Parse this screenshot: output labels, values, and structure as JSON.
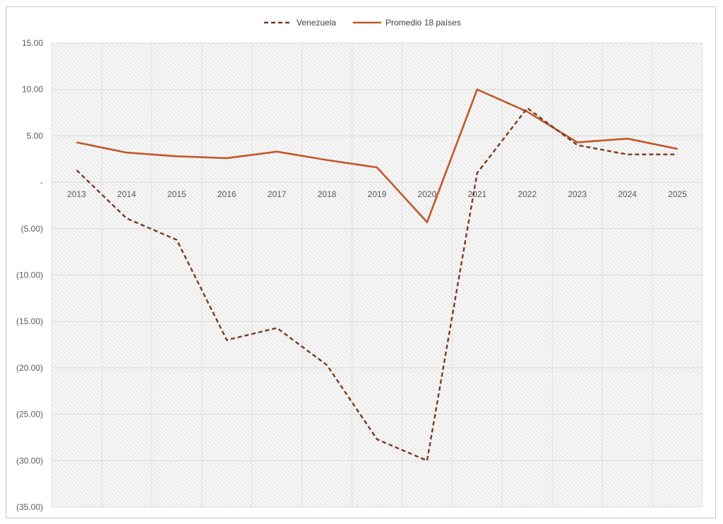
{
  "chart_data": {
    "type": "line",
    "title": "",
    "xlabel": "",
    "ylabel": "",
    "x": [
      "2013",
      "2014",
      "2015",
      "2016",
      "2017",
      "2018",
      "2019",
      "2020",
      "2021",
      "2022",
      "2023",
      "2024",
      "2025"
    ],
    "ylim": [
      -35,
      15
    ],
    "yticks": [
      15,
      10,
      5,
      0,
      -5,
      -10,
      -15,
      -20,
      -25,
      -30,
      -35
    ],
    "ytick_labels": [
      "15.00",
      "10.00",
      "5.00",
      "-",
      "(5.00)",
      "(10.00)",
      "(15.00)",
      "(20.00)",
      "(25.00)",
      "(30.00)",
      "(35.00)"
    ],
    "grid": true,
    "legend": "top-center",
    "series": [
      {
        "name": "Venezuela",
        "style": "dashed",
        "color": "#7a3a1e",
        "values": [
          1.3,
          -3.9,
          -6.2,
          -17.0,
          -15.7,
          -19.7,
          -27.7,
          -30.0,
          1.0,
          8.0,
          4.0,
          3.0,
          3.0
        ]
      },
      {
        "name": "Promedio 18 países",
        "style": "solid",
        "color": "#c0582a",
        "values": [
          4.3,
          3.2,
          2.8,
          2.6,
          3.3,
          2.4,
          1.6,
          -4.3,
          10.0,
          7.6,
          4.3,
          4.7,
          3.6
        ]
      }
    ]
  }
}
